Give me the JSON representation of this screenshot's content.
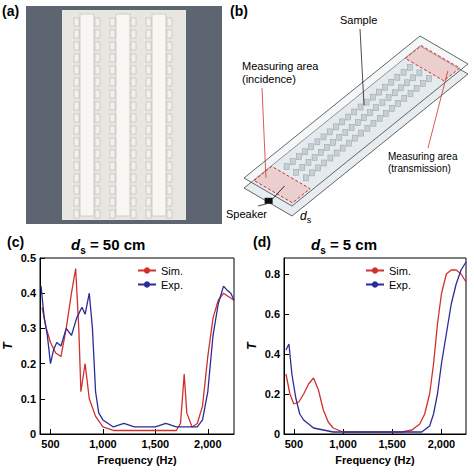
{
  "panels": [
    {
      "label": "(a)"
    },
    {
      "label": "(b)",
      "texts": {
        "sample": "Sample",
        "incidence": "Measuring area (incidence)",
        "speaker": "Speaker",
        "distance": "ds",
        "transmission": "Measuring area (transmission)"
      }
    }
  ],
  "chart_data": [
    {
      "type": "line",
      "label": "(c)",
      "title": "ds = 50 cm",
      "x_label": "Frequency (Hz)",
      "y_label": "T",
      "xlim": [
        400,
        2250
      ],
      "xticks": [
        500,
        1000,
        1500,
        2000
      ],
      "ylim": [
        0,
        0.5
      ],
      "yticks": [
        0,
        0.1,
        0.2,
        0.3,
        0.4,
        0.5
      ],
      "grid": false,
      "legend": "upper center",
      "series": [
        {
          "name": "Sim.",
          "color": "#d0312d",
          "x": [
            420,
            460,
            500,
            550,
            600,
            650,
            700,
            740,
            770,
            790,
            830,
            870,
            930,
            1000,
            1100,
            1200,
            1300,
            1400,
            1500,
            1600,
            1700,
            1740,
            1775,
            1800,
            1850,
            1900,
            1950,
            2000,
            2050,
            2100,
            2150,
            2200,
            2250
          ],
          "values": [
            0.36,
            0.3,
            0.26,
            0.23,
            0.22,
            0.3,
            0.4,
            0.47,
            0.3,
            0.12,
            0.2,
            0.1,
            0.05,
            0.02,
            0.01,
            0.01,
            0.01,
            0.01,
            0.01,
            0.01,
            0.01,
            0.03,
            0.17,
            0.06,
            0.02,
            0.03,
            0.08,
            0.22,
            0.33,
            0.38,
            0.4,
            0.39,
            0.38
          ]
        },
        {
          "name": "Exp.",
          "color": "#2b2b99",
          "x": [
            410,
            440,
            470,
            500,
            530,
            560,
            600,
            650,
            700,
            750,
            800,
            830,
            870,
            900,
            930,
            960,
            1000,
            1050,
            1100,
            1200,
            1300,
            1400,
            1500,
            1600,
            1700,
            1800,
            1900,
            1950,
            2000,
            2050,
            2100,
            2150,
            2180,
            2220,
            2250
          ],
          "values": [
            0.42,
            0.33,
            0.28,
            0.2,
            0.24,
            0.26,
            0.25,
            0.3,
            0.28,
            0.33,
            0.36,
            0.34,
            0.4,
            0.3,
            0.12,
            0.06,
            0.04,
            0.03,
            0.02,
            0.03,
            0.02,
            0.02,
            0.02,
            0.03,
            0.02,
            0.02,
            0.02,
            0.04,
            0.12,
            0.28,
            0.37,
            0.42,
            0.41,
            0.4,
            0.38
          ]
        }
      ]
    },
    {
      "type": "line",
      "label": "(d)",
      "title": "ds = 5 cm",
      "x_label": "Frequency (Hz)",
      "y_label": "T",
      "xlim": [
        400,
        2250
      ],
      "xticks": [
        500,
        1000,
        1500,
        2000
      ],
      "ylim": [
        0,
        0.88
      ],
      "yticks": [
        0,
        0.2,
        0.4,
        0.6,
        0.8
      ],
      "grid": false,
      "legend": "upper center",
      "series": [
        {
          "name": "Sim.",
          "color": "#d0312d",
          "x": [
            420,
            460,
            500,
            550,
            600,
            650,
            700,
            750,
            800,
            850,
            900,
            1000,
            1100,
            1200,
            1300,
            1400,
            1500,
            1600,
            1700,
            1780,
            1830,
            1880,
            1920,
            1960,
            2000,
            2050,
            2100,
            2150,
            2200,
            2250
          ],
          "values": [
            0.3,
            0.2,
            0.15,
            0.16,
            0.2,
            0.25,
            0.28,
            0.22,
            0.12,
            0.06,
            0.03,
            0.01,
            0.01,
            0.01,
            0.01,
            0.01,
            0.01,
            0.01,
            0.02,
            0.05,
            0.1,
            0.2,
            0.35,
            0.55,
            0.7,
            0.8,
            0.82,
            0.82,
            0.8,
            0.76
          ]
        },
        {
          "name": "Exp.",
          "color": "#2b2b99",
          "x": [
            420,
            450,
            480,
            520,
            560,
            600,
            650,
            700,
            800,
            900,
            1000,
            1200,
            1400,
            1600,
            1800,
            1880,
            1920,
            1960,
            2000,
            2050,
            2100,
            2150,
            2200,
            2250
          ],
          "values": [
            0.42,
            0.45,
            0.3,
            0.18,
            0.1,
            0.07,
            0.05,
            0.03,
            0.02,
            0.01,
            0.01,
            0.01,
            0.01,
            0.01,
            0.01,
            0.04,
            0.1,
            0.2,
            0.35,
            0.5,
            0.65,
            0.75,
            0.82,
            0.86
          ]
        }
      ]
    }
  ]
}
